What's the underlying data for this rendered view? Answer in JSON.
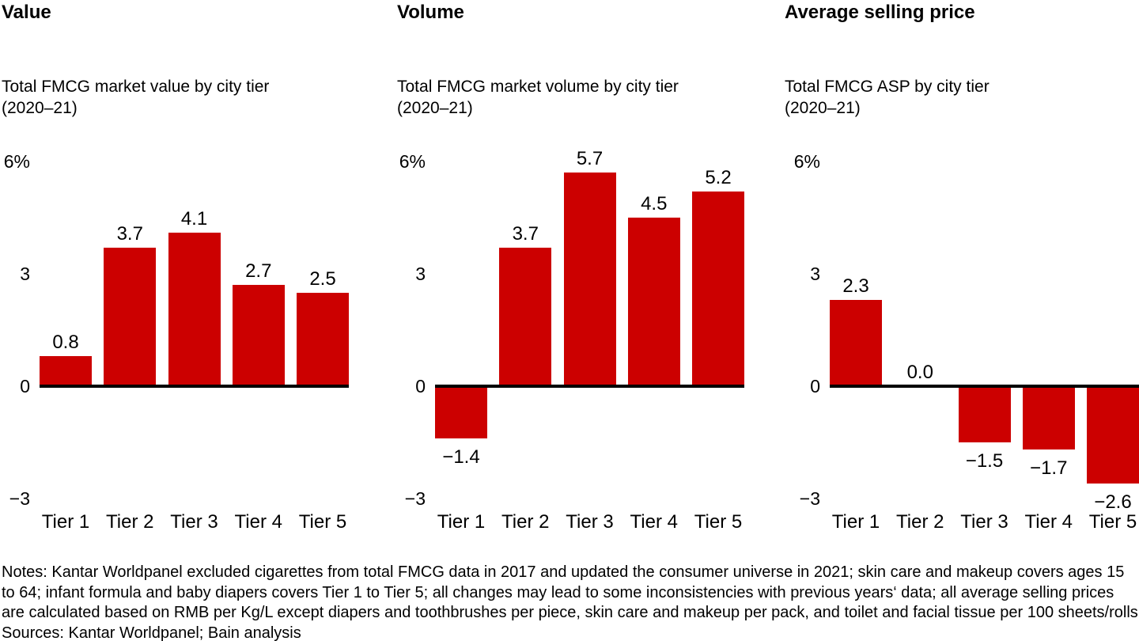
{
  "accent_color": "#cc0000",
  "chart_data": [
    {
      "type": "bar",
      "title": "Value",
      "subtitle_lines": [
        "Total FMCG market value by city tier",
        "(2020–21)"
      ],
      "categories": [
        "Tier 1",
        "Tier 2",
        "Tier 3",
        "Tier 4",
        "Tier 5"
      ],
      "values": [
        0.8,
        3.7,
        4.1,
        2.7,
        2.5
      ],
      "value_labels": [
        "0.8",
        "3.7",
        "4.1",
        "2.7",
        "2.5"
      ],
      "ylabel": "%",
      "ylim": [
        -3,
        6
      ],
      "yticks": [
        {
          "label": "6%",
          "value": 6
        },
        {
          "label": "3",
          "value": 3
        },
        {
          "label": "0",
          "value": 0
        },
        {
          "label": "−3",
          "value": -3
        }
      ],
      "bar_color": "#cc0000",
      "grid": false,
      "legend": null
    },
    {
      "type": "bar",
      "title": "Volume",
      "subtitle_lines": [
        "Total FMCG market volume by city tier",
        "(2020–21)"
      ],
      "categories": [
        "Tier 1",
        "Tier 2",
        "Tier 3",
        "Tier 4",
        "Tier 5"
      ],
      "values": [
        -1.4,
        3.7,
        5.7,
        4.5,
        5.2
      ],
      "value_labels": [
        "−1.4",
        "3.7",
        "5.7",
        "4.5",
        "5.2"
      ],
      "ylabel": "%",
      "ylim": [
        -3,
        6
      ],
      "yticks": [
        {
          "label": "6%",
          "value": 6
        },
        {
          "label": "3",
          "value": 3
        },
        {
          "label": "0",
          "value": 0
        },
        {
          "label": "−3",
          "value": -3
        }
      ],
      "bar_color": "#cc0000",
      "grid": false,
      "legend": null
    },
    {
      "type": "bar",
      "title": "Average selling price",
      "subtitle_lines": [
        "Total FMCG ASP by city tier",
        "(2020–21)"
      ],
      "categories": [
        "Tier 1",
        "Tier 2",
        "Tier 3",
        "Tier 4",
        "Tier 5"
      ],
      "values": [
        2.3,
        0.0,
        -1.5,
        -1.7,
        -2.6
      ],
      "value_labels": [
        "2.3",
        "0.0",
        "−1.5",
        "−1.7",
        "−2.6"
      ],
      "ylabel": "%",
      "ylim": [
        -3,
        6
      ],
      "yticks": [
        {
          "label": "6%",
          "value": 6
        },
        {
          "label": "3",
          "value": 3
        },
        {
          "label": "0",
          "value": 0
        },
        {
          "label": "−3",
          "value": -3
        }
      ],
      "bar_color": "#cc0000",
      "grid": false,
      "legend": null
    }
  ],
  "footer": {
    "notes": "Notes: Kantar Worldpanel excluded cigarettes from total FMCG data in 2017 and updated the consumer universe in 2021; skin care and makeup covers ages 15 to 64; infant formula and baby diapers covers Tier 1 to Tier 5; all changes may lead to some inconsistencies with previous years‘ data; all average selling prices are calculated based on RMB per Kg/L except diapers and toothbrushes per piece, skin care and makeup per pack, and toilet and facial tissue per 100 sheets/rolls",
    "sources": "Sources: Kantar Worldpanel; Bain analysis"
  }
}
